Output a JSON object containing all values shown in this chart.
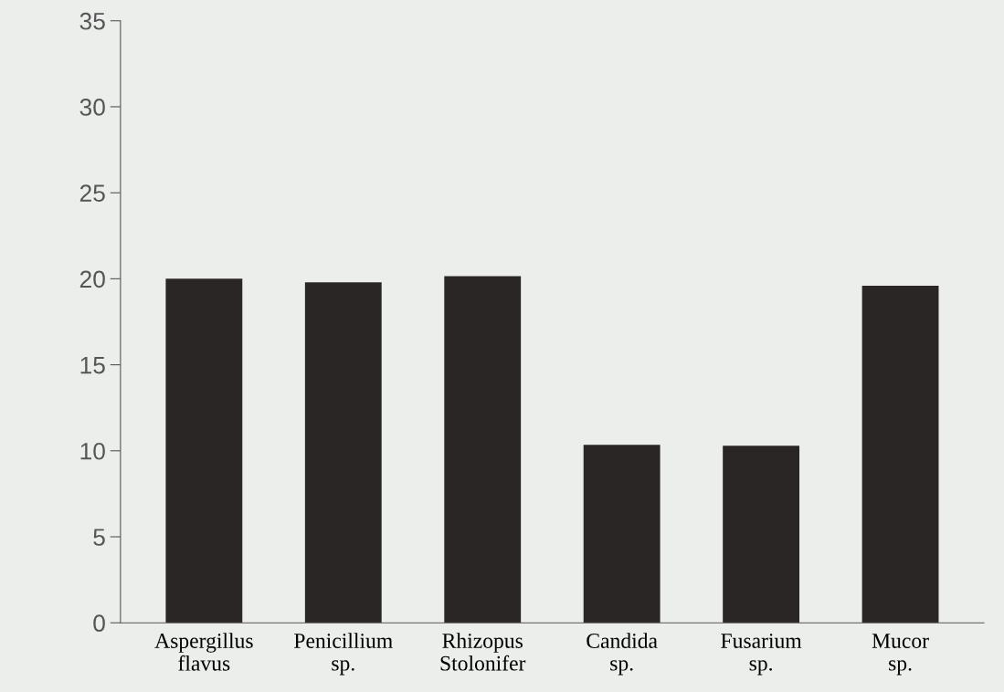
{
  "chart_data": {
    "type": "bar",
    "categories": [
      "Aspergillus\nflavus",
      "Penicillium\nsp.",
      "Rhizopus\nStolonifer",
      "Candida\nsp.",
      "Fusarium\nsp.",
      "Mucor\nsp."
    ],
    "values": [
      20,
      19.8,
      20.15,
      10.35,
      10.3,
      19.6
    ],
    "color": "#2b2626",
    "ylim": [
      0,
      35
    ],
    "yticks": [
      0,
      5,
      10,
      15,
      20,
      25,
      30,
      35
    ],
    "grid": false,
    "legend": false
  }
}
